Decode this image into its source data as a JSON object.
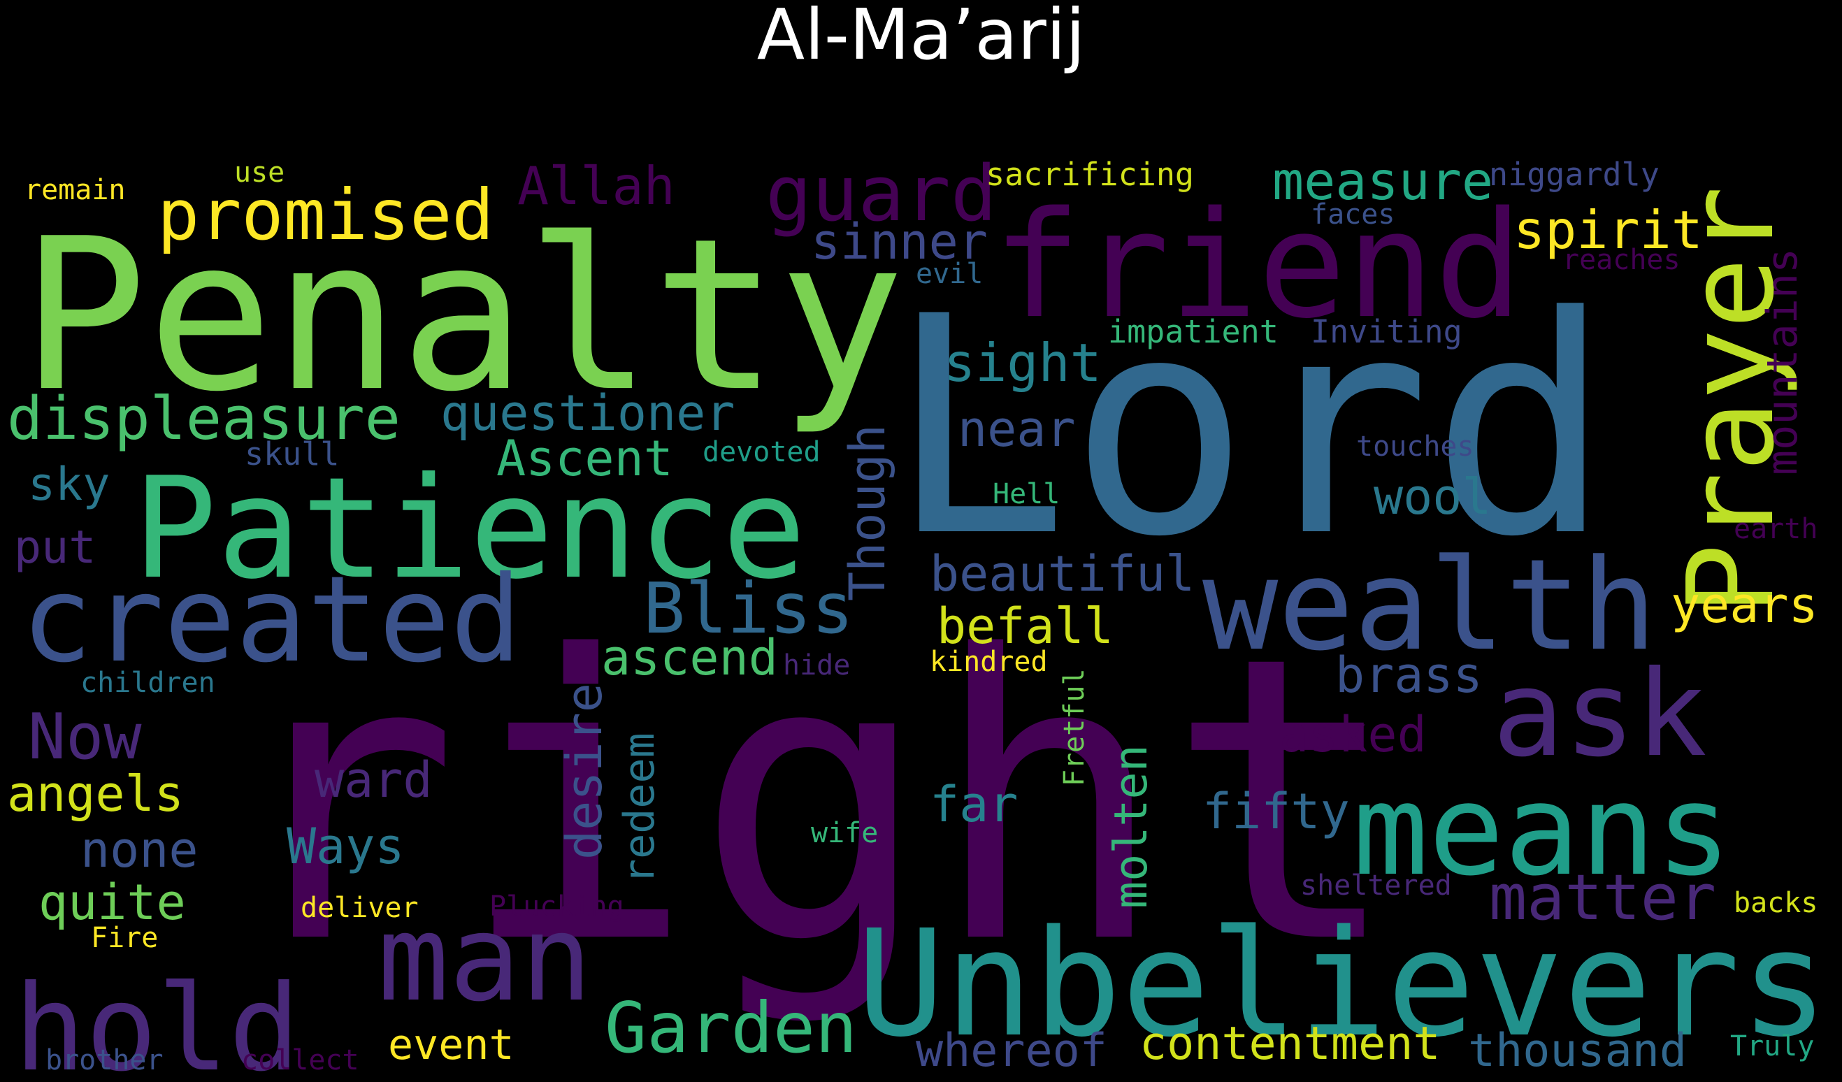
{
  "title": "Al-Ma’arij",
  "colormap": "viridis",
  "background_color": "#000000",
  "title_color": "#ffffff",
  "words": [
    {
      "text": "right",
      "color": "#440154"
    },
    {
      "text": "Lord",
      "color": "#31688e"
    },
    {
      "text": "Penalty",
      "color": "#7ad151"
    },
    {
      "text": "Unbelievers",
      "color": "#21918c"
    },
    {
      "text": "Patience",
      "color": "#35b779"
    },
    {
      "text": "friend",
      "color": "#440154"
    },
    {
      "text": "wealth",
      "color": "#3b528b"
    },
    {
      "text": "means",
      "color": "#1f9e89"
    },
    {
      "text": "created",
      "color": "#3b528b"
    },
    {
      "text": "hold",
      "color": "#482878"
    },
    {
      "text": "man",
      "color": "#482878"
    },
    {
      "text": "ask",
      "color": "#482878"
    },
    {
      "text": "Prayer",
      "color": "#bddf26"
    },
    {
      "text": "guard",
      "color": "#440154"
    },
    {
      "text": "promised",
      "color": "#fde725"
    },
    {
      "text": "displeasure",
      "color": "#4ac16d"
    },
    {
      "text": "Garden",
      "color": "#35b779"
    },
    {
      "text": "Bliss",
      "color": "#31688e"
    },
    {
      "text": "matter",
      "color": "#482878"
    },
    {
      "text": "Allah",
      "color": "#440154"
    },
    {
      "text": "measure",
      "color": "#22a884"
    },
    {
      "text": "spirit",
      "color": "#fde725"
    },
    {
      "text": "questioner",
      "color": "#2a788e"
    },
    {
      "text": "mountains",
      "color": "#440154"
    },
    {
      "text": "sinner",
      "color": "#3e4989"
    },
    {
      "text": "sight",
      "color": "#26828e"
    },
    {
      "text": "near",
      "color": "#3b528b"
    },
    {
      "text": "Ascent",
      "color": "#35b779"
    },
    {
      "text": "beautiful",
      "color": "#3b528b"
    },
    {
      "text": "befall",
      "color": "#d2e21b"
    },
    {
      "text": "years",
      "color": "#fde725"
    },
    {
      "text": "wool",
      "color": "#2a788e"
    },
    {
      "text": "Though",
      "color": "#3b528b"
    },
    {
      "text": "ascend",
      "color": "#4ac16d"
    },
    {
      "text": "brass",
      "color": "#3b528b"
    },
    {
      "text": "Now",
      "color": "#482878"
    },
    {
      "text": "asked",
      "color": "#440154"
    },
    {
      "text": "angels",
      "color": "#d2e21b"
    },
    {
      "text": "ward",
      "color": "#482878"
    },
    {
      "text": "desire",
      "color": "#3b528b"
    },
    {
      "text": "redeem",
      "color": "#2a788e"
    },
    {
      "text": "molten",
      "color": "#35b779"
    },
    {
      "text": "far",
      "color": "#26828e"
    },
    {
      "text": "fifty",
      "color": "#31688e"
    },
    {
      "text": "none",
      "color": "#3b528b"
    },
    {
      "text": "Ways",
      "color": "#2a788e"
    },
    {
      "text": "quite",
      "color": "#6ece58"
    },
    {
      "text": "event",
      "color": "#fde725"
    },
    {
      "text": "whereof",
      "color": "#3e4989"
    },
    {
      "text": "contentment",
      "color": "#d2e21b"
    },
    {
      "text": "thousand",
      "color": "#31688e"
    },
    {
      "text": "sky",
      "color": "#2a788e"
    },
    {
      "text": "put",
      "color": "#482878"
    },
    {
      "text": "sacrificing",
      "color": "#d2e21b"
    },
    {
      "text": "niggardly",
      "color": "#3e4989"
    },
    {
      "text": "remain",
      "color": "#fde725"
    },
    {
      "text": "use",
      "color": "#bddf26"
    },
    {
      "text": "faces",
      "color": "#3b528b"
    },
    {
      "text": "evil",
      "color": "#31688e"
    },
    {
      "text": "reaches",
      "color": "#440154"
    },
    {
      "text": "impatient",
      "color": "#35b779"
    },
    {
      "text": "Inviting",
      "color": "#3e4989"
    },
    {
      "text": "skull",
      "color": "#3b528b"
    },
    {
      "text": "devoted",
      "color": "#1f9e89"
    },
    {
      "text": "touches",
      "color": "#3e4989"
    },
    {
      "text": "Hell",
      "color": "#35b779"
    },
    {
      "text": "earth",
      "color": "#440154"
    },
    {
      "text": "children",
      "color": "#2a788e"
    },
    {
      "text": "hide",
      "color": "#482878"
    },
    {
      "text": "kindred",
      "color": "#fde725"
    },
    {
      "text": "Fretful",
      "color": "#6ece58"
    },
    {
      "text": "wife",
      "color": "#35b779"
    },
    {
      "text": "sheltered",
      "color": "#482878"
    },
    {
      "text": "backs",
      "color": "#d2e21b"
    },
    {
      "text": "deliver",
      "color": "#fde725"
    },
    {
      "text": "Plucking",
      "color": "#440154"
    },
    {
      "text": "Fire",
      "color": "#fde725"
    },
    {
      "text": "brother",
      "color": "#3b528b"
    },
    {
      "text": "collect",
      "color": "#440154"
    },
    {
      "text": "Truly",
      "color": "#22a884"
    }
  ]
}
